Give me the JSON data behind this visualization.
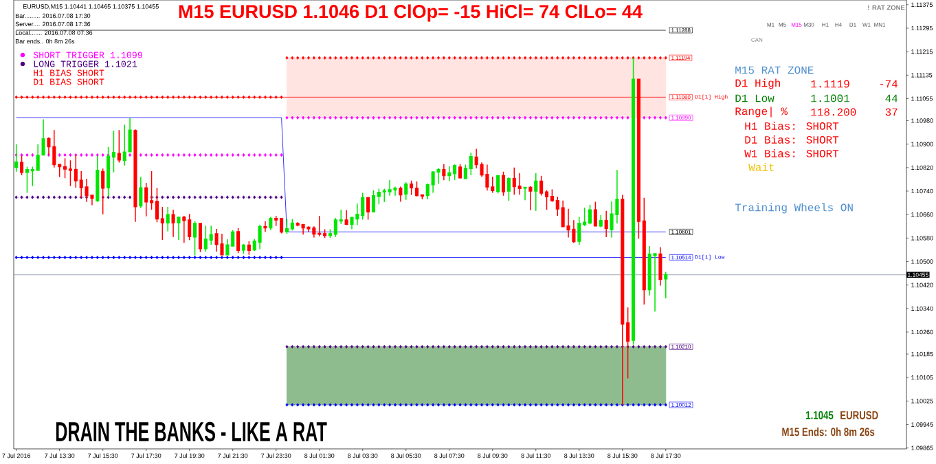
{
  "chart_data": {
    "type": "candlestick",
    "title": "M15 EURUSD 1.1046 D1 ClOp= -15 HiCl= 74 ClLo= 44",
    "x": [
      "2016-07-07T11:30",
      "2016-07-07T11:45",
      "2016-07-07T12:00",
      "2016-07-07T12:15",
      "2016-07-07T12:30",
      "2016-07-07T12:45",
      "2016-07-07T13:00",
      "2016-07-07T13:15",
      "2016-07-07T13:30",
      "2016-07-07T13:45",
      "2016-07-07T14:00",
      "2016-07-07T14:15",
      "2016-07-07T14:30",
      "2016-07-07T14:45",
      "2016-07-07T15:00",
      "2016-07-07T15:15",
      "2016-07-07T15:30",
      "2016-07-07T15:45",
      "2016-07-07T16:00",
      "2016-07-07T16:15",
      "2016-07-07T16:30",
      "2016-07-07T16:45",
      "2016-07-07T17:00",
      "2016-07-07T17:15",
      "2016-07-07T17:30",
      "2016-07-07T17:45",
      "2016-07-07T18:00",
      "2016-07-07T18:15",
      "2016-07-07T18:30",
      "2016-07-07T18:45",
      "2016-07-07T19:00",
      "2016-07-07T19:15",
      "2016-07-07T19:30",
      "2016-07-07T19:45",
      "2016-07-07T20:00",
      "2016-07-07T20:15",
      "2016-07-07T20:30",
      "2016-07-07T20:45",
      "2016-07-07T21:00",
      "2016-07-07T21:15",
      "2016-07-07T21:30",
      "2016-07-07T21:45",
      "2016-07-07T22:00",
      "2016-07-07T22:15",
      "2016-07-07T22:30",
      "2016-07-07T22:45",
      "2016-07-07T23:00",
      "2016-07-07T23:15",
      "2016-07-07T23:30",
      "2016-07-07T23:45",
      "2016-07-08T00:00",
      "2016-07-08T00:15",
      "2016-07-08T00:30",
      "2016-07-08T00:45",
      "2016-07-08T01:00",
      "2016-07-08T01:15",
      "2016-07-08T01:30",
      "2016-07-08T01:45",
      "2016-07-08T02:00",
      "2016-07-08T02:15",
      "2016-07-08T02:30",
      "2016-07-08T02:45",
      "2016-07-08T03:00",
      "2016-07-08T03:15",
      "2016-07-08T03:30",
      "2016-07-08T03:45",
      "2016-07-08T04:00",
      "2016-07-08T04:15",
      "2016-07-08T04:30",
      "2016-07-08T04:45",
      "2016-07-08T05:00",
      "2016-07-08T05:15",
      "2016-07-08T05:30",
      "2016-07-08T05:45",
      "2016-07-08T06:00",
      "2016-07-08T06:15",
      "2016-07-08T06:30",
      "2016-07-08T06:45",
      "2016-07-08T07:00",
      "2016-07-08T07:15",
      "2016-07-08T07:30",
      "2016-07-08T07:45",
      "2016-07-08T08:00",
      "2016-07-08T08:15",
      "2016-07-08T08:30",
      "2016-07-08T08:45",
      "2016-07-08T09:00",
      "2016-07-08T09:15",
      "2016-07-08T09:30",
      "2016-07-08T09:45",
      "2016-07-08T10:00",
      "2016-07-08T10:15",
      "2016-07-08T10:30",
      "2016-07-08T10:45",
      "2016-07-08T11:00",
      "2016-07-08T11:15",
      "2016-07-08T11:30",
      "2016-07-08T11:45",
      "2016-07-08T12:00",
      "2016-07-08T12:15",
      "2016-07-08T12:30",
      "2016-07-08T12:45",
      "2016-07-08T13:00",
      "2016-07-08T13:15",
      "2016-07-08T13:30",
      "2016-07-08T13:45",
      "2016-07-08T14:00",
      "2016-07-08T14:15",
      "2016-07-08T14:30",
      "2016-07-08T14:45",
      "2016-07-08T15:00",
      "2016-07-08T15:15",
      "2016-07-08T15:30",
      "2016-07-08T15:45",
      "2016-07-08T16:00",
      "2016-07-08T16:15",
      "2016-07-08T16:30",
      "2016-07-08T16:45",
      "2016-07-08T17:00",
      "2016-07-08T17:15",
      "2016-07-08T17:30"
    ],
    "ohlc": [
      [
        1.10821,
        1.10899,
        1.10806,
        1.10839
      ],
      [
        1.10838,
        1.1086,
        1.10794,
        1.10804
      ],
      [
        1.10804,
        1.10823,
        1.10734,
        1.10813
      ],
      [
        1.10809,
        1.10823,
        1.10757,
        1.10813
      ],
      [
        1.10811,
        1.10899,
        1.10811,
        1.10862
      ],
      [
        1.10863,
        1.10985,
        1.10863,
        1.10918
      ],
      [
        1.10919,
        1.10923,
        1.10863,
        1.10891
      ],
      [
        1.10891,
        1.10948,
        1.1082,
        1.1083
      ],
      [
        1.10831,
        1.10831,
        1.10788,
        1.10823
      ],
      [
        1.10823,
        1.10852,
        1.10784,
        1.10815
      ],
      [
        1.10815,
        1.10845,
        1.10757,
        1.10811
      ],
      [
        1.10814,
        1.10862,
        1.10752,
        1.10775
      ],
      [
        1.10777,
        1.10808,
        1.10718,
        1.10752
      ],
      [
        1.10754,
        1.10782,
        1.10703,
        1.10724
      ],
      [
        1.10726,
        1.10726,
        1.10692,
        1.10716
      ],
      [
        1.10707,
        1.1086,
        1.10703,
        1.10811
      ],
      [
        1.10807,
        1.10817,
        1.10661,
        1.1075
      ],
      [
        1.10752,
        1.1089,
        1.10722,
        1.10859
      ],
      [
        1.10856,
        1.10946,
        1.10804,
        1.10872
      ],
      [
        1.10868,
        1.10948,
        1.10837,
        1.10846
      ],
      [
        1.10845,
        1.10966,
        1.10827,
        1.10873
      ],
      [
        1.10874,
        1.10988,
        1.10874,
        1.10948
      ],
      [
        1.10946,
        1.1095,
        1.10635,
        1.10687
      ],
      [
        1.1069,
        1.10788,
        1.10682,
        1.10751
      ],
      [
        1.10751,
        1.10768,
        1.10654,
        1.10703
      ],
      [
        1.10707,
        1.10808,
        1.10677,
        1.10701
      ],
      [
        1.10705,
        1.10751,
        1.10634,
        1.10645
      ],
      [
        1.10646,
        1.10686,
        1.10574,
        1.10632
      ],
      [
        1.10632,
        1.10686,
        1.10603,
        1.1066
      ],
      [
        1.1066,
        1.10677,
        1.10584,
        1.10632
      ],
      [
        1.10632,
        1.10651,
        1.10574,
        1.10651
      ],
      [
        1.10651,
        1.10656,
        1.10564,
        1.1064
      ],
      [
        1.10642,
        1.10662,
        1.10573,
        1.10585
      ],
      [
        1.10584,
        1.10637,
        1.10521,
        1.1063
      ],
      [
        1.1063,
        1.1063,
        1.10532,
        1.10544
      ],
      [
        1.10544,
        1.10622,
        1.10534,
        1.10576
      ],
      [
        1.10573,
        1.10622,
        1.10557,
        1.10592
      ],
      [
        1.10595,
        1.10611,
        1.10534,
        1.10558
      ],
      [
        1.1056,
        1.10595,
        1.10521,
        1.10523
      ],
      [
        1.10523,
        1.10576,
        1.10521,
        1.10557
      ],
      [
        1.10553,
        1.10607,
        1.10553,
        1.10601
      ],
      [
        1.10602,
        1.10614,
        1.10529,
        1.10538
      ],
      [
        1.10539,
        1.1056,
        1.10527,
        1.10556
      ],
      [
        1.10556,
        1.1057,
        1.10523,
        1.10538
      ],
      [
        1.1054,
        1.10576,
        1.10536,
        1.1057
      ],
      [
        1.10566,
        1.10626,
        1.10542,
        1.10619
      ],
      [
        1.10619,
        1.10637,
        1.10601,
        1.10615
      ],
      [
        1.10615,
        1.10652,
        1.10607,
        1.10647
      ],
      [
        1.10647,
        1.10656,
        1.10621,
        1.10642
      ],
      [
        1.10647,
        1.10647,
        1.10596,
        1.10601
      ],
      [
        1.10602,
        1.10645,
        1.10595,
        1.10612
      ],
      [
        1.10612,
        1.10645,
        1.10606,
        1.10631
      ],
      [
        1.1063,
        1.10634,
        1.1062,
        1.10624
      ],
      [
        1.10626,
        1.10628,
        1.10592,
        1.10615
      ],
      [
        1.10617,
        1.1062,
        1.10602,
        1.10612
      ],
      [
        1.10614,
        1.1062,
        1.10582,
        1.10594
      ],
      [
        1.10596,
        1.10656,
        1.10586,
        1.10593
      ],
      [
        1.10595,
        1.1061,
        1.1058,
        1.10589
      ],
      [
        1.10589,
        1.1061,
        1.1058,
        1.10595
      ],
      [
        1.10593,
        1.10649,
        1.10584,
        1.10642
      ],
      [
        1.10638,
        1.10677,
        1.10628,
        1.10642
      ],
      [
        1.10642,
        1.10675,
        1.10624,
        1.10627
      ],
      [
        1.10627,
        1.10653,
        1.1061,
        1.1065
      ],
      [
        1.10645,
        1.10698,
        1.10624,
        1.10661
      ],
      [
        1.10657,
        1.10734,
        1.10643,
        1.10718
      ],
      [
        1.10718,
        1.1072,
        1.10643,
        1.10669
      ],
      [
        1.10669,
        1.10743,
        1.10669,
        1.10724
      ],
      [
        1.10722,
        1.10748,
        1.10695,
        1.10736
      ],
      [
        1.10738,
        1.10748,
        1.10703,
        1.10741
      ],
      [
        1.10738,
        1.10778,
        1.10724,
        1.10745
      ],
      [
        1.10744,
        1.10755,
        1.10724,
        1.1075
      ],
      [
        1.1075,
        1.10755,
        1.10704,
        1.10727
      ],
      [
        1.1073,
        1.1077,
        1.1071,
        1.10764
      ],
      [
        1.10764,
        1.10776,
        1.10727,
        1.10751
      ],
      [
        1.1075,
        1.10773,
        1.10722,
        1.10725
      ],
      [
        1.10727,
        1.10727,
        1.10712,
        1.10723
      ],
      [
        1.10725,
        1.10766,
        1.10712,
        1.10762
      ],
      [
        1.10762,
        1.10808,
        1.10734,
        1.10805
      ],
      [
        1.10805,
        1.10819,
        1.10765,
        1.10813
      ],
      [
        1.10813,
        1.10832,
        1.10777,
        1.10793
      ],
      [
        1.10793,
        1.10825,
        1.10774,
        1.10802
      ],
      [
        1.108,
        1.10831,
        1.10778,
        1.10827
      ],
      [
        1.10822,
        1.10832,
        1.10783,
        1.10785
      ],
      [
        1.10783,
        1.1083,
        1.10783,
        1.10818
      ],
      [
        1.10817,
        1.10871,
        1.10794,
        1.10858
      ],
      [
        1.10856,
        1.10884,
        1.10818,
        1.1083
      ],
      [
        1.1083,
        1.10838,
        1.10789,
        1.10795
      ],
      [
        1.10797,
        1.1083,
        1.10742,
        1.10754
      ],
      [
        1.10754,
        1.10789,
        1.10734,
        1.10742
      ],
      [
        1.10739,
        1.10793,
        1.10732,
        1.10793
      ],
      [
        1.10793,
        1.10806,
        1.10724,
        1.10738
      ],
      [
        1.1074,
        1.10787,
        1.10707,
        1.10783
      ],
      [
        1.10783,
        1.1082,
        1.10728,
        1.10755
      ],
      [
        1.10757,
        1.10801,
        1.10728,
        1.10749
      ],
      [
        1.1075,
        1.10754,
        1.10709,
        1.10753
      ],
      [
        1.10753,
        1.10757,
        1.10675,
        1.1074
      ],
      [
        1.1074,
        1.10801,
        1.10673,
        1.10774
      ],
      [
        1.10774,
        1.10792,
        1.10725,
        1.10733
      ],
      [
        1.10737,
        1.10743,
        1.10676,
        1.10721
      ],
      [
        1.10722,
        1.10746,
        1.10703,
        1.10708
      ],
      [
        1.10708,
        1.10721,
        1.10656,
        1.10679
      ],
      [
        1.10683,
        1.10708,
        1.10617,
        1.10619
      ],
      [
        1.10621,
        1.1068,
        1.10582,
        1.10608
      ],
      [
        1.1061,
        1.10641,
        1.10563,
        1.10568
      ],
      [
        1.10569,
        1.10652,
        1.10557,
        1.1063
      ],
      [
        1.10626,
        1.10684,
        1.10621,
        1.10634
      ],
      [
        1.10631,
        1.10694,
        1.10627,
        1.10676
      ],
      [
        1.10676,
        1.10704,
        1.10621,
        1.10621
      ],
      [
        1.10621,
        1.10658,
        1.10617,
        1.1064
      ],
      [
        1.1064,
        1.10673,
        1.10583,
        1.10613
      ],
      [
        1.10609,
        1.10705,
        1.10582,
        1.10662
      ],
      [
        1.1066,
        1.10812,
        1.1063,
        1.10712
      ],
      [
        1.10712,
        1.10727,
        1.10012,
        1.10287
      ],
      [
        1.10291,
        1.10344,
        1.10102,
        1.10229
      ],
      [
        1.10232,
        1.11194,
        1.10217,
        1.11121
      ],
      [
        1.11121,
        1.11121,
        1.10578,
        1.10637
      ],
      [
        1.10638,
        1.10717,
        1.10354,
        1.10404
      ],
      [
        1.10404,
        1.10553,
        1.10385,
        1.10525
      ],
      [
        1.10521,
        1.10527,
        1.1033,
        1.10527
      ],
      [
        1.10526,
        1.10549,
        1.10418,
        1.10439
      ],
      [
        1.10441,
        1.10465,
        1.10375,
        1.10455
      ]
    ],
    "colors": [
      "#00e600",
      "#ff0000",
      "#00e600",
      "#00e600",
      "#00e600",
      "#00e600",
      "#ff0000",
      "#ff0000",
      "#ff0000",
      "#ff0000",
      "#ff0000",
      "#ff0000",
      "#ff0000",
      "#ff0000",
      "#ff0000",
      "#00e600",
      "#ff0000",
      "#00e600",
      "#00e600",
      "#ff0000",
      "#00e600",
      "#00e600",
      "#ff0000",
      "#00e600",
      "#ff0000",
      "#ff0000",
      "#ff0000",
      "#ff0000",
      "#00e600",
      "#ff0000",
      "#00e600",
      "#ff0000",
      "#ff0000",
      "#00e600",
      "#ff0000",
      "#00e600",
      "#00e600",
      "#ff0000",
      "#ff0000",
      "#00e600",
      "#00e600",
      "#ff0000",
      "#00e600",
      "#ff0000",
      "#00e600",
      "#00e600",
      "#ff0000",
      "#00e600",
      "#ff0000",
      "#ff0000",
      "#00e600",
      "#00e600",
      "#ff0000",
      "#ff0000",
      "#ff0000",
      "#ff0000",
      "#ff0000",
      "#ff0000",
      "#00e600",
      "#00e600",
      "#00e600",
      "#ff0000",
      "#00e600",
      "#00e600",
      "#00e600",
      "#ff0000",
      "#00e600",
      "#00e600",
      "#00e600",
      "#00e600",
      "#00e600",
      "#ff0000",
      "#00e600",
      "#ff0000",
      "#ff0000",
      "#ff0000",
      "#00e600",
      "#00e600",
      "#00e600",
      "#ff0000",
      "#00e600",
      "#00e600",
      "#ff0000",
      "#00e600",
      "#00e600",
      "#ff0000",
      "#ff0000",
      "#ff0000",
      "#ff0000",
      "#00e600",
      "#ff0000",
      "#00e600",
      "#ff0000",
      "#ff0000",
      "#00e600",
      "#ff0000",
      "#00e600",
      "#ff0000",
      "#ff0000",
      "#ff0000",
      "#ff0000",
      "#ff0000",
      "#ff0000",
      "#ff0000",
      "#00e600",
      "#00e600",
      "#00e600",
      "#ff0000",
      "#00e600",
      "#ff0000",
      "#00e600",
      "#00e600",
      "#ff0000",
      "#ff0000",
      "#00e600",
      "#ff0000",
      "#ff0000",
      "#00e600",
      "#00e600",
      "#ff0000",
      "#00e600"
    ],
    "series": [
      {
        "type": "line",
        "color": "#000000",
        "x": [
          "2016-07-07T11:30",
          "2016-07-08T17:30"
        ],
        "values": [
          1.11288,
          1.11288
        ]
      },
      {
        "type": "line",
        "color": "#ff0000",
        "x": [
          "2016-07-07T11:30",
          "2016-07-08T17:30"
        ],
        "values": [
          1.1106,
          1.1106
        ]
      },
      {
        "type": "line",
        "color": "#0000ff",
        "x": [
          "2016-07-07T11:30",
          "2016-07-08T17:30"
        ],
        "values": [
          1.10514,
          1.10514
        ]
      },
      {
        "type": "line",
        "color": "#0000ff",
        "x": [
          "2016-07-07T11:30",
          "2016-07-07T23:45",
          "2016-07-08T00:00",
          "2016-07-08T17:30"
        ],
        "values": [
          1.1099,
          1.1099,
          1.10601,
          1.10601
        ]
      },
      {
        "type": "line",
        "color": "#ff0000",
        "marker": "diamond",
        "line_style": "dotted",
        "values": [
          1.1106,
          1.1106,
          1.1106,
          1.1106,
          1.1106,
          1.1106,
          1.1106,
          1.1106,
          1.1106,
          1.1106,
          1.1106,
          1.1106,
          1.1106,
          1.1106,
          1.1106,
          1.1106,
          1.1106,
          1.1106,
          1.1106,
          1.1106,
          1.1106,
          1.1106,
          1.1106,
          1.1106,
          1.1106,
          1.1106,
          1.1106,
          1.1106,
          1.1106,
          1.1106,
          1.1106,
          1.1106,
          1.1106,
          1.1106,
          1.1106,
          1.1106,
          1.1106,
          1.1106,
          1.1106,
          1.1106,
          1.1106,
          1.1106,
          1.1106,
          1.1106,
          1.1106,
          1.1106,
          1.1106,
          1.1106,
          1.1106,
          1.1106,
          null,
          null,
          null,
          null,
          null,
          null,
          null,
          null,
          null,
          null,
          null,
          null,
          null,
          null,
          null,
          null,
          null,
          null,
          null,
          null,
          null,
          null,
          null,
          null,
          null,
          null,
          null,
          null,
          null,
          null,
          null,
          null,
          null,
          null,
          null,
          null,
          null,
          null,
          null,
          null,
          null,
          null,
          null,
          null,
          null,
          null,
          null,
          null,
          null,
          null,
          null,
          null,
          null,
          null,
          null,
          null,
          null,
          null,
          null,
          null,
          null,
          null,
          null,
          null,
          null,
          null,
          null,
          null,
          null,
          null,
          null
        ]
      },
      {
        "type": "line",
        "color": "#ff00ff",
        "marker": "diamond",
        "line_style": "dotted",
        "values": [
          1.10863,
          1.10863,
          1.10863,
          1.10863,
          null,
          null,
          1.10863,
          null,
          1.10863,
          1.10863,
          1.10863,
          1.10863,
          1.10863,
          1.10863,
          1.10863,
          1.10863,
          1.10863,
          1.10863,
          null,
          null,
          null,
          1.10863,
          null,
          1.10863,
          1.10863,
          1.10863,
          1.10863,
          1.10863,
          1.10863,
          1.10863,
          1.10863,
          1.10863,
          1.10863,
          1.10863,
          1.10863,
          1.10863,
          1.10863,
          1.10863,
          1.10863,
          1.10863,
          1.10863,
          1.10863,
          1.10863,
          1.10863,
          1.10863,
          1.10863,
          1.10863,
          1.10863,
          1.10863,
          1.10863,
          null,
          null,
          null,
          null,
          null,
          null,
          null,
          null,
          null,
          null,
          null,
          null,
          null,
          null,
          null,
          null,
          null,
          null,
          null,
          null,
          null,
          null,
          null,
          null,
          null,
          null,
          null,
          null,
          null,
          null,
          null,
          null,
          null,
          null,
          null,
          null,
          null,
          null,
          null,
          null,
          null,
          null,
          null,
          null,
          null,
          null,
          null,
          null,
          null,
          null,
          null,
          null,
          null,
          null,
          null,
          null,
          null,
          null,
          null,
          null,
          null,
          null,
          null,
          null,
          null,
          null,
          null,
          null,
          null,
          null,
          null
        ]
      },
      {
        "type": "line",
        "color": "#4b0082",
        "marker": "diamond",
        "line_style": "dotted",
        "values": [
          1.10719,
          1.10719,
          1.10719,
          1.10719,
          1.10719,
          1.10719,
          1.10719,
          1.10719,
          1.10719,
          1.10719,
          1.10719,
          1.10719,
          1.10719,
          1.10719,
          null,
          null,
          1.10719,
          1.10719,
          1.10719,
          1.10719,
          1.10719,
          1.10719,
          null,
          null,
          null,
          1.10719,
          1.10719,
          1.10719,
          1.10719,
          1.10719,
          1.10719,
          1.10719,
          1.10719,
          1.10719,
          1.10719,
          1.10719,
          1.10719,
          1.10719,
          1.10719,
          1.10719,
          1.10719,
          1.10719,
          1.10719,
          1.10719,
          1.10719,
          1.10719,
          1.10719,
          1.10719,
          1.10719,
          1.10719,
          null,
          null,
          null,
          null,
          null,
          null,
          null,
          null,
          null,
          null,
          null,
          null,
          null,
          null,
          null,
          null,
          null,
          null,
          null,
          null,
          null,
          null,
          null,
          null,
          null,
          null,
          null,
          null,
          null,
          null,
          null,
          null,
          null,
          null,
          null,
          null,
          null,
          null,
          null,
          null,
          null,
          null,
          null,
          null,
          null,
          null,
          null,
          null,
          null,
          null,
          null,
          null,
          null,
          null,
          null,
          null,
          null,
          null,
          null,
          null,
          null,
          null,
          null,
          null,
          null,
          null,
          null,
          null,
          null,
          null,
          null
        ]
      },
      {
        "type": "line",
        "color": "#0000ff",
        "marker": "diamond",
        "line_style": "dotted",
        "values": [
          1.10514,
          1.10514,
          1.10514,
          1.10514,
          1.10514,
          1.10514,
          1.10514,
          1.10514,
          1.10514,
          1.10514,
          1.10514,
          1.10514,
          1.10514,
          1.10514,
          1.10514,
          1.10514,
          1.10514,
          1.10514,
          1.10514,
          1.10514,
          1.10514,
          1.10514,
          1.10514,
          1.10514,
          1.10514,
          1.10514,
          1.10514,
          1.10514,
          1.10514,
          1.10514,
          1.10514,
          1.10514,
          1.10514,
          1.10514,
          1.10514,
          1.10514,
          1.10514,
          1.10514,
          1.10514,
          1.10514,
          1.10514,
          1.10514,
          1.10514,
          1.10514,
          1.10514,
          1.10514,
          1.10514,
          1.10514,
          1.10514,
          1.10514,
          null,
          null,
          null,
          null,
          null,
          null,
          null,
          null,
          null,
          null,
          null,
          null,
          null,
          null,
          null,
          null,
          null,
          null,
          null,
          null,
          null,
          null,
          null,
          null,
          null,
          null,
          null,
          null,
          null,
          null,
          null,
          null,
          null,
          null,
          null,
          null,
          null,
          null,
          null,
          null,
          null,
          null,
          null,
          null,
          null,
          null,
          null,
          null,
          null,
          null,
          null,
          null,
          null,
          null,
          null,
          null,
          null,
          null,
          null,
          null,
          null,
          null,
          null,
          null,
          null,
          null,
          null,
          null,
          null,
          null,
          null
        ]
      },
      {
        "type": "line",
        "color": "#ff0000",
        "marker": "diamond",
        "line_style": "dotted",
        "values": [
          null,
          null,
          null,
          null,
          null,
          null,
          null,
          null,
          null,
          null,
          null,
          null,
          null,
          null,
          null,
          null,
          null,
          null,
          null,
          null,
          null,
          null,
          null,
          null,
          null,
          null,
          null,
          null,
          null,
          null,
          null,
          null,
          null,
          null,
          null,
          null,
          null,
          null,
          null,
          null,
          null,
          null,
          null,
          null,
          null,
          null,
          null,
          null,
          null,
          null,
          1.11194,
          1.11194,
          1.11194,
          1.11194,
          1.11194,
          1.11194,
          1.11194,
          1.11194,
          1.11194,
          1.11194,
          1.11194,
          1.11194,
          1.11194,
          1.11194,
          1.11194,
          1.11194,
          1.11194,
          1.11194,
          1.11194,
          1.11194,
          1.11194,
          1.11194,
          1.11194,
          1.11194,
          1.11194,
          1.11194,
          1.11194,
          1.11194,
          1.11194,
          1.11194,
          1.11194,
          1.11194,
          1.11194,
          1.11194,
          1.11194,
          1.11194,
          1.11194,
          1.11194,
          1.11194,
          1.11194,
          1.11194,
          1.11194,
          1.11194,
          1.11194,
          1.11194,
          1.11194,
          1.11194,
          1.11194,
          1.11194,
          1.11194,
          1.11194,
          1.11194,
          1.11194,
          1.11194,
          1.11194,
          1.11194,
          1.11194,
          1.11194,
          1.11194,
          1.11194,
          1.11194,
          1.11194,
          1.11194,
          1.11194,
          1.11194,
          1.11194,
          1.11194,
          1.11194,
          1.11194,
          1.11194,
          1.11194
        ]
      },
      {
        "type": "line",
        "name": "SHORT TRIGGER 1.1099",
        "color": "#ff00ff",
        "marker": "diamond",
        "line_style": "dotted",
        "values": [
          null,
          null,
          null,
          null,
          null,
          null,
          null,
          null,
          null,
          null,
          null,
          null,
          null,
          null,
          null,
          null,
          null,
          null,
          null,
          null,
          null,
          null,
          null,
          null,
          null,
          null,
          null,
          null,
          null,
          null,
          null,
          null,
          null,
          null,
          null,
          null,
          null,
          null,
          null,
          null,
          null,
          null,
          null,
          null,
          null,
          null,
          null,
          null,
          null,
          null,
          1.1099,
          1.1099,
          1.1099,
          1.1099,
          1.1099,
          1.1099,
          1.1099,
          1.1099,
          1.1099,
          1.1099,
          1.1099,
          1.1099,
          1.1099,
          1.1099,
          1.1099,
          1.1099,
          1.1099,
          1.1099,
          1.1099,
          1.1099,
          1.1099,
          1.1099,
          1.1099,
          1.1099,
          1.1099,
          1.1099,
          1.1099,
          1.1099,
          1.1099,
          1.1099,
          1.1099,
          1.1099,
          1.1099,
          1.1099,
          1.1099,
          1.1099,
          1.1099,
          1.1099,
          1.1099,
          1.1099,
          1.1099,
          1.1099,
          1.1099,
          1.1099,
          1.1099,
          1.1099,
          1.1099,
          1.1099,
          1.1099,
          1.1099,
          1.1099,
          1.1099,
          1.1099,
          1.1099,
          1.1099,
          1.1099,
          1.1099,
          1.1099,
          1.1099,
          1.1099,
          1.1099,
          1.1099,
          1.1099,
          1.1099,
          null,
          null,
          1.1099,
          1.1099,
          1.1099,
          1.1099,
          1.1099
        ]
      },
      {
        "type": "line",
        "name": "LONG TRIGGER 1.1021",
        "color": "#4b0082",
        "marker": "diamond",
        "line_style": "dotted",
        "values": [
          null,
          null,
          null,
          null,
          null,
          null,
          null,
          null,
          null,
          null,
          null,
          null,
          null,
          null,
          null,
          null,
          null,
          null,
          null,
          null,
          null,
          null,
          null,
          null,
          null,
          null,
          null,
          null,
          null,
          null,
          null,
          null,
          null,
          null,
          null,
          null,
          null,
          null,
          null,
          null,
          null,
          null,
          null,
          null,
          null,
          null,
          null,
          null,
          null,
          null,
          1.1021,
          1.1021,
          1.1021,
          1.1021,
          1.1021,
          1.1021,
          1.1021,
          1.1021,
          1.1021,
          1.1021,
          1.1021,
          1.1021,
          1.1021,
          1.1021,
          1.1021,
          1.1021,
          1.1021,
          1.1021,
          1.1021,
          1.1021,
          1.1021,
          1.1021,
          1.1021,
          1.1021,
          1.1021,
          1.1021,
          1.1021,
          1.1021,
          1.1021,
          1.1021,
          1.1021,
          1.1021,
          1.1021,
          1.1021,
          1.1021,
          1.1021,
          1.1021,
          1.1021,
          1.1021,
          1.1021,
          1.1021,
          1.1021,
          1.1021,
          1.1021,
          1.1021,
          1.1021,
          1.1021,
          1.1021,
          1.1021,
          1.1021,
          1.1021,
          1.1021,
          1.1021,
          1.1021,
          1.1021,
          1.1021,
          1.1021,
          1.1021,
          1.1021,
          1.1021,
          1.1021,
          1.1021,
          1.1021,
          1.1021,
          1.1021,
          1.1021,
          1.1021,
          1.1021,
          1.1021,
          1.1021,
          1.1021
        ]
      },
      {
        "type": "line",
        "color": "#0000ff",
        "marker": "diamond",
        "line_style": "dotted",
        "values": [
          null,
          null,
          null,
          null,
          null,
          null,
          null,
          null,
          null,
          null,
          null,
          null,
          null,
          null,
          null,
          null,
          null,
          null,
          null,
          null,
          null,
          null,
          null,
          null,
          null,
          null,
          null,
          null,
          null,
          null,
          null,
          null,
          null,
          null,
          null,
          null,
          null,
          null,
          null,
          null,
          null,
          null,
          null,
          null,
          null,
          null,
          null,
          null,
          null,
          null,
          1.10012,
          1.10012,
          1.10012,
          1.10012,
          1.10012,
          1.10012,
          1.10012,
          1.10012,
          1.10012,
          1.10012,
          1.10012,
          1.10012,
          1.10012,
          1.10012,
          1.10012,
          1.10012,
          1.10012,
          1.10012,
          1.10012,
          1.10012,
          1.10012,
          1.10012,
          1.10012,
          1.10012,
          1.10012,
          1.10012,
          1.10012,
          1.10012,
          1.10012,
          1.10012,
          1.10012,
          1.10012,
          1.10012,
          1.10012,
          1.10012,
          1.10012,
          1.10012,
          1.10012,
          1.10012,
          1.10012,
          1.10012,
          1.10012,
          1.10012,
          1.10012,
          1.10012,
          1.10012,
          1.10012,
          1.10012,
          1.10012,
          1.10012,
          1.10012,
          1.10012,
          1.10012,
          1.10012,
          1.10012,
          1.10012,
          1.10012,
          1.10012,
          1.10012,
          1.10012,
          1.10012,
          1.10012,
          1.10012,
          1.10012,
          1.10012,
          1.10012,
          1.10012,
          1.10012,
          1.10012,
          1.10012,
          1.10012
        ]
      }
    ],
    "bands": [
      {
        "axis": "y",
        "from": 1.1099,
        "to": 1.11194,
        "color": "#ffe4e1"
      },
      {
        "axis": "y",
        "from": 1.10012,
        "to": 1.1021,
        "color": "#8fbc8f"
      }
    ],
    "xlim": [
      "2016-07-07T11:23",
      "2016-07-09T04:37"
    ],
    "xticks": [
      {
        "value": "2016-07-07T11:30",
        "label": "7 Jul 2016"
      },
      {
        "value": "2016-07-07T13:30",
        "label": "7 Jul 13:30"
      },
      {
        "value": "2016-07-07T15:30",
        "label": "7 Jul 15:30"
      },
      {
        "value": "2016-07-07T17:30",
        "label": "7 Jul 17:30"
      },
      {
        "value": "2016-07-07T19:30",
        "label": "7 Jul 19:30"
      },
      {
        "value": "2016-07-07T21:30",
        "label": "7 Jul 21:30"
      },
      {
        "value": "2016-07-07T23:30",
        "label": "7 Jul 23:30"
      },
      {
        "value": "2016-07-08T01:30",
        "label": "8 Jul 01:30"
      },
      {
        "value": "2016-07-08T03:30",
        "label": "8 Jul 03:30"
      },
      {
        "value": "2016-07-08T05:30",
        "label": "8 Jul 05:30"
      },
      {
        "value": "2016-07-08T07:30",
        "label": "8 Jul 07:30"
      },
      {
        "value": "2016-07-08T09:30",
        "label": "8 Jul 09:30"
      },
      {
        "value": "2016-07-08T11:30",
        "label": "8 Jul 11:30"
      },
      {
        "value": "2016-07-08T13:30",
        "label": "8 Jul 13:30"
      },
      {
        "value": "2016-07-08T15:30",
        "label": "8 Jul 15:30"
      },
      {
        "value": "2016-07-08T17:30",
        "label": "8 Jul 17:30"
      }
    ],
    "ylim": [
      1.09862,
      1.11391
    ],
    "yticks": [
      1.11375,
      1.11295,
      1.11215,
      1.11135,
      1.11055,
      {
        "value": 1.1098,
        "label": "1.10980"
      },
      {
        "value": 1.109,
        "label": "1.10900"
      },
      {
        "value": 1.1082,
        "label": "1.10820"
      },
      {
        "value": 1.1074,
        "label": "1.10740"
      },
      {
        "value": 1.1066,
        "label": "1.10660"
      },
      {
        "value": 1.1058,
        "label": "1.10580"
      },
      {
        "value": 1.105,
        "label": "1.10500"
      },
      {
        "value": 1.1042,
        "label": "1.10420"
      },
      {
        "value": 1.1034,
        "label": "1.10340"
      },
      {
        "value": 1.1026,
        "label": "1.10260"
      },
      1.10185,
      1.10105,
      1.10025,
      1.09945,
      1.09865
    ],
    "ref_lines": [
      {
        "axis": "y",
        "value": 1.10455,
        "label": "1.10455",
        "color": "#778899"
      }
    ],
    "legend": "top left",
    "annotations": [
      "EURUSD,M15 1.10441 1.10465 1.10375 1.10455",
      "Bar......... 2016.07.08 17:30",
      "Server.... 2016.07.08 17:36",
      "Local....... 2016.07.08 07:36",
      "Bar ends.. 0h 8m 26s",
      "H1 BIAS SHORT",
      "D1 BIAS SHORT",
      "! RAT ZONE",
      "M1",
      "M5",
      "M15",
      "M30",
      "H1",
      "H4",
      "D1",
      "W1",
      "MN1",
      "CAN",
      "M15 RAT ZONE",
      "D1 High",
      "1.1119",
      "-74",
      "D1 Low",
      "1.1001",
      "44",
      "Range| %",
      "118.200",
      "37",
      "H1 Bias: SHORT",
      "D1 Bias: SHORT",
      "W1 Bias: SHORT",
      "Wait",
      "Training Wheels ON",
      "1.1045",
      "EURUSD",
      "M15 Ends: 0h 8m 26s",
      "DRAIN THE BANKS - LIKE A RAT",
      "D1[1] High",
      "D1[1] Low",
      {
        "text": "1.11288",
        "x": "2016-07-08T17:30",
        "y": 1.11288
      },
      {
        "text": "1.11194",
        "x": "2016-07-08T17:30",
        "y": 1.11194
      },
      {
        "text": "1.11060",
        "x": "2016-07-08T17:30",
        "y": 1.1106
      },
      {
        "text": "1.10990",
        "x": "2016-07-08T17:30",
        "y": 1.1099
      },
      {
        "text": "1.10601",
        "x": "2016-07-08T17:30",
        "y": 1.10601
      },
      {
        "text": "1.10514",
        "x": "2016-07-08T17:30",
        "y": 1.10514
      },
      {
        "text": "1.10210",
        "x": "2016-07-08T17:30",
        "y": 1.1021
      },
      {
        "text": "1.10012",
        "x": "2016-07-08T17:30",
        "y": 1.10012
      }
    ]
  }
}
